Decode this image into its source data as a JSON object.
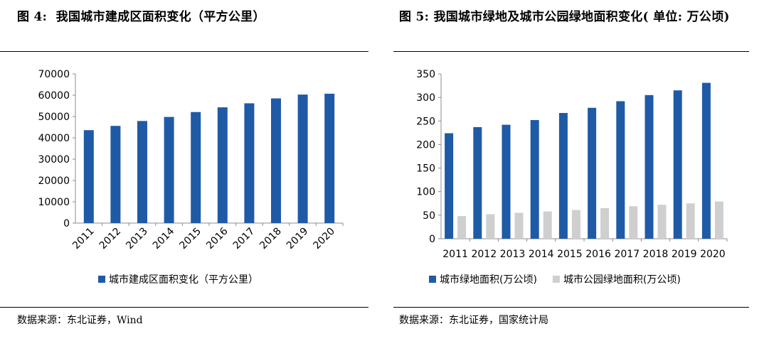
{
  "left": {
    "title": "图 4:  我国城市建成区面积变化（平方公里）",
    "source": "数据来源：东北证券，Wind"
  },
  "right": {
    "title": "图 5: 我国城市绿地及城市公园绿地面积变化( 单位: 万公顷)",
    "source": "数据来源：东北证券，国家统计局"
  },
  "colors": {
    "blue": "#1f5aa6",
    "gray": "#cfcfcf"
  },
  "chart_data": [
    {
      "type": "bar",
      "categories": [
        "2011",
        "2012",
        "2013",
        "2014",
        "2015",
        "2016",
        "2017",
        "2018",
        "2019",
        "2020"
      ],
      "series": [
        {
          "name": "城市建成区面积变化（平方公里）",
          "values": [
            43600,
            45600,
            47900,
            49800,
            52100,
            54300,
            56200,
            58500,
            60300,
            60700
          ]
        }
      ],
      "ylim": [
        0,
        70000
      ],
      "yticks": [
        0,
        10000,
        20000,
        30000,
        40000,
        50000,
        60000,
        70000
      ],
      "legend_position": "bottom",
      "grid": false
    },
    {
      "type": "bar",
      "categories": [
        "2011",
        "2012",
        "2013",
        "2014",
        "2015",
        "2016",
        "2017",
        "2018",
        "2019",
        "2020"
      ],
      "series": [
        {
          "name": "城市绿地面积(万公顷)",
          "values": [
            224,
            237,
            242,
            252,
            267,
            278,
            292,
            305,
            315,
            331
          ]
        },
        {
          "name": "城市公园绿地面积(万公顷)",
          "values": [
            48,
            52,
            55,
            58,
            61,
            65,
            69,
            72,
            75,
            79
          ]
        }
      ],
      "ylim": [
        0,
        350
      ],
      "yticks": [
        0,
        50,
        100,
        150,
        200,
        250,
        300,
        350
      ],
      "legend_position": "bottom",
      "grid": false
    }
  ]
}
